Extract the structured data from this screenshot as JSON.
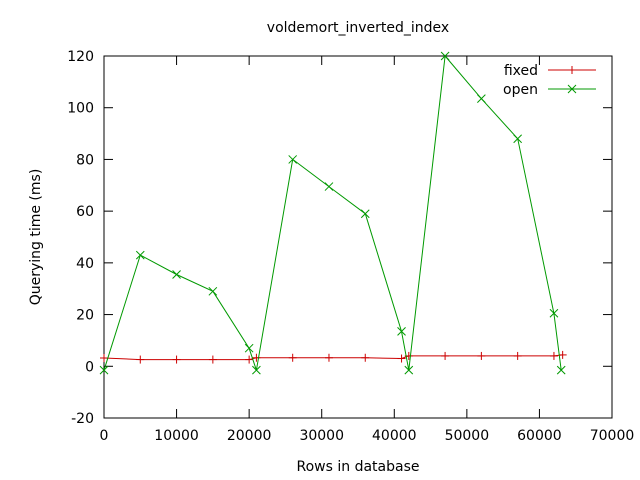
{
  "chart_data": {
    "type": "line",
    "title": "voldemort_inverted_index",
    "xlabel": "Rows in database",
    "ylabel": "Querying time (ms)",
    "xlim": [
      0,
      70000
    ],
    "ylim": [
      -20,
      120
    ],
    "xticks": [
      0,
      10000,
      20000,
      30000,
      40000,
      50000,
      60000,
      70000
    ],
    "yticks": [
      -20,
      0,
      20,
      40,
      60,
      80,
      100,
      120
    ],
    "grid": false,
    "legend_position": "top-right",
    "series": [
      {
        "name": "fixed",
        "color": "#cc0000",
        "marker": "plus",
        "x": [
          0,
          5000,
          10000,
          15000,
          20000,
          21000,
          26000,
          31000,
          36000,
          41000,
          42000,
          47000,
          52000,
          57000,
          62000,
          63200
        ],
        "y": [
          3.2,
          2.6,
          2.6,
          2.6,
          2.6,
          3.3,
          3.3,
          3.3,
          3.3,
          3.0,
          4.0,
          4.0,
          4.0,
          4.0,
          4.0,
          4.4
        ]
      },
      {
        "name": "open",
        "color": "#009900",
        "marker": "cross",
        "x": [
          0,
          5000,
          10000,
          15000,
          20000,
          21000,
          26000,
          31000,
          36000,
          41000,
          42000,
          47000,
          52000,
          57000,
          62000,
          63000
        ],
        "y": [
          -1.5,
          43,
          35.5,
          29,
          7,
          -1.5,
          80,
          69.5,
          59,
          13.5,
          -1.5,
          120,
          103.5,
          88,
          20.5,
          -1.5
        ]
      }
    ]
  }
}
